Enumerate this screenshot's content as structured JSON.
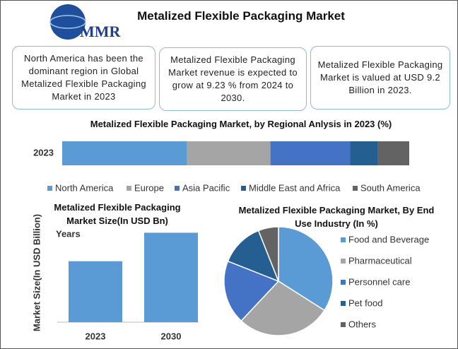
{
  "header": {
    "title": "Metalized Flexible Packaging Market",
    "logo": "MMR"
  },
  "info_boxes": [
    "North America has been the dominant region in Global Metalized Flexible Packaging Market in 2023",
    "Metalized Flexible Packaging Market revenue is expected to grow at 9.23 % from 2024 to 2030.",
    "Metalized Flexible Packaging Market is valued at USD 9.2 Billion in 2023."
  ],
  "chart_data": [
    {
      "type": "stacked_bar",
      "title": "Metalized Flexible Packaging Market, by Regional Anlysis in 2023 (%)",
      "categories": [
        "2023"
      ],
      "xlim": [
        0,
        100
      ],
      "series": [
        {
          "name": "North America",
          "color": "#5b9bd5",
          "values": [
            36
          ]
        },
        {
          "name": "Europe",
          "color": "#a5a5a5",
          "values": [
            24
          ]
        },
        {
          "name": "Asia Pacific",
          "color": "#4472c4",
          "values": [
            23
          ]
        },
        {
          "name": "Middle East and Africa",
          "color": "#255e91",
          "values": [
            8
          ]
        },
        {
          "name": "South America",
          "color": "#636363",
          "values": [
            9
          ]
        }
      ]
    },
    {
      "type": "bar",
      "title": "Metalized Flexible Packaging Market Size(In USD Bn)",
      "x_label": "Years",
      "y_label": "Market Size(In USD Billion)",
      "categories": [
        "2023",
        "2030"
      ],
      "values": [
        9.2,
        13.5
      ],
      "color": "#5b9bd5",
      "ylim": [
        0,
        16
      ]
    },
    {
      "type": "pie",
      "title": "Metalized Flexible Packaging Market, By End Use Industry (In %)",
      "categories": [
        "Food and Beverage",
        "Pharmaceutical",
        "Personnel care",
        "Pet food",
        "Others"
      ],
      "values": [
        34,
        28,
        19,
        13,
        6
      ],
      "colors": [
        "#5b9bd5",
        "#a5a5a5",
        "#4472c4",
        "#255e91",
        "#636363"
      ]
    }
  ]
}
